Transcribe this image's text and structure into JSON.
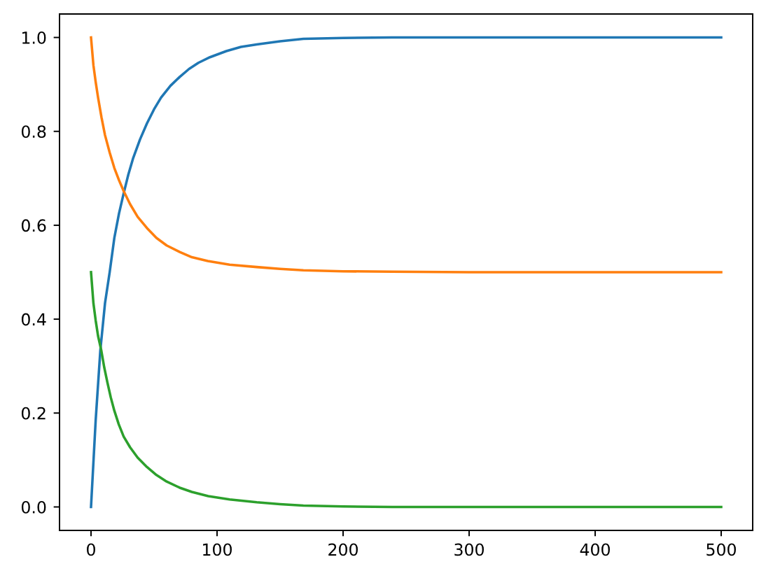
{
  "chart_data": {
    "type": "line",
    "xlim": [
      -25,
      525
    ],
    "xticks": [
      0,
      100,
      200,
      300,
      400,
      500
    ],
    "ylim": [
      -0.05,
      1.05
    ],
    "yticks": [
      {
        "value": 0,
        "label": "0.0"
      },
      {
        "value": 0.2,
        "label": "0.2"
      },
      {
        "value": 0.4,
        "label": "0.4"
      },
      {
        "value": 0.6,
        "label": "0.6"
      },
      {
        "value": 0.8,
        "label": "0.8"
      },
      {
        "value": 1,
        "label": "1.0"
      }
    ],
    "grid": false,
    "series": [
      {
        "color": "#1f77b4",
        "x": [
          0,
          2,
          3.7,
          7.4,
          11.1,
          14.8,
          18.5,
          22.2,
          25.9,
          29.6,
          33.3,
          38.9,
          44.4,
          50,
          55.6,
          63,
          70.4,
          77.8,
          85.2,
          94.4,
          107.4,
          119,
          131.5,
          150,
          168.5,
          200,
          239,
          300,
          400,
          500
        ],
        "values": [
          0,
          0.1,
          0.185,
          0.334,
          0.434,
          0.5,
          0.573,
          0.625,
          0.668,
          0.708,
          0.742,
          0.783,
          0.817,
          0.847,
          0.872,
          0.897,
          0.916,
          0.933,
          0.946,
          0.958,
          0.971,
          0.98,
          0.985,
          0.992,
          0.997,
          0.999,
          1,
          1,
          1,
          1
        ]
      },
      {
        "color": "#ff7f0e",
        "x": [
          0,
          1.9,
          3.7,
          5.6,
          8.3,
          11.1,
          14.8,
          18.5,
          22.2,
          25.9,
          31,
          37,
          44.4,
          51.9,
          60,
          70.4,
          80,
          92.6,
          110,
          131.5,
          150,
          168.5,
          200,
          239,
          300,
          400,
          500
        ],
        "values": [
          1,
          0.941,
          0.905,
          0.872,
          0.83,
          0.792,
          0.755,
          0.722,
          0.696,
          0.673,
          0.645,
          0.618,
          0.594,
          0.573,
          0.557,
          0.543,
          0.532,
          0.524,
          0.516,
          0.511,
          0.507,
          0.504,
          0.502,
          0.501,
          0.5,
          0.5,
          0.5
        ]
      },
      {
        "color": "#2ca02c",
        "x": [
          0,
          1.9,
          3.7,
          5.6,
          8.1,
          10.5,
          13,
          15.7,
          18.5,
          22,
          25.9,
          31,
          37,
          44.4,
          51.9,
          60,
          70.4,
          80,
          93,
          110,
          131.5,
          150,
          168.5,
          200,
          239,
          300,
          400,
          500
        ],
        "values": [
          0.5,
          0.434,
          0.397,
          0.364,
          0.334,
          0.297,
          0.265,
          0.233,
          0.205,
          0.176,
          0.15,
          0.127,
          0.105,
          0.085,
          0.068,
          0.054,
          0.041,
          0.032,
          0.023,
          0.016,
          0.01,
          0.006,
          0.003,
          0.001,
          0,
          0,
          0,
          0
        ]
      }
    ]
  }
}
